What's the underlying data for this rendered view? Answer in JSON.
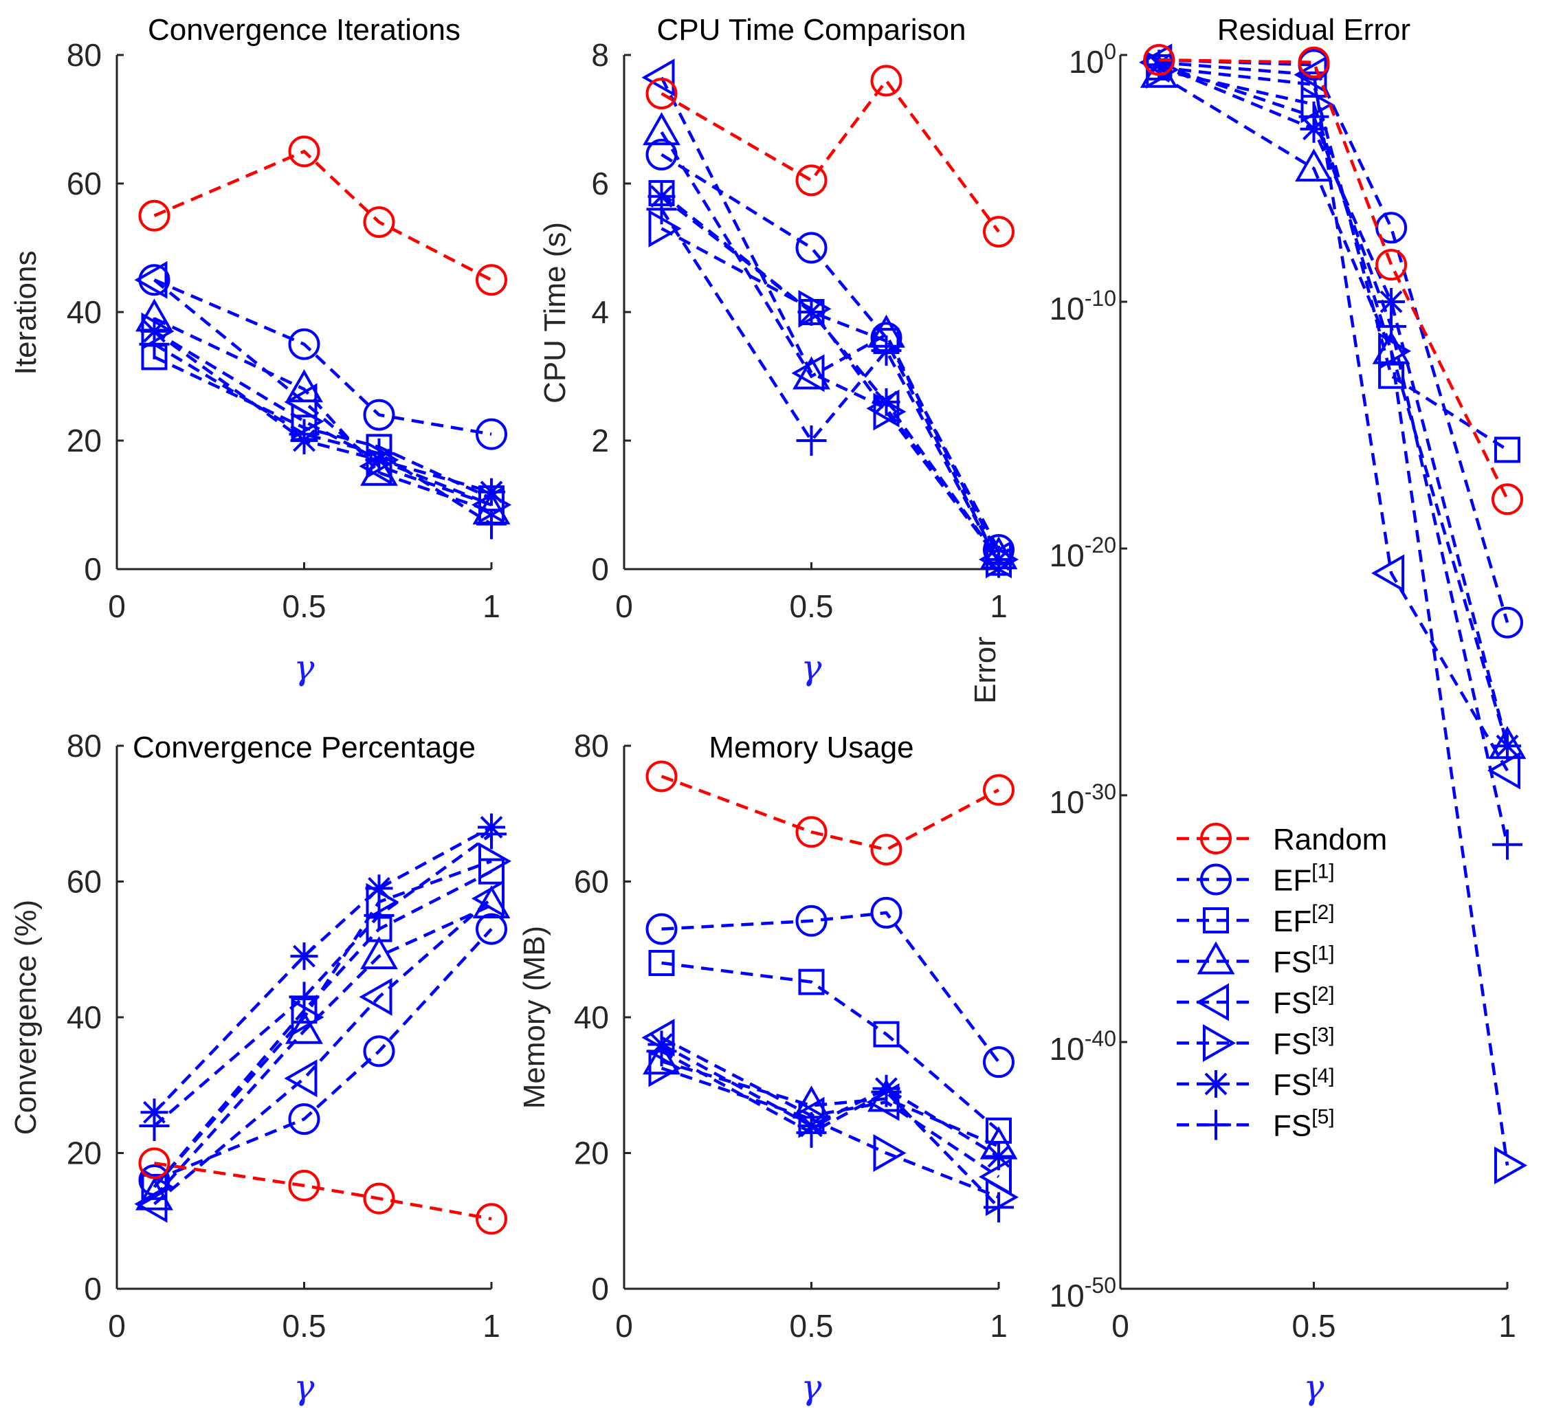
{
  "colors": {
    "random": "#ff0000",
    "method": "#0000ff",
    "axis": "#262626",
    "gamma": "#1a1aff"
  },
  "legend": [
    {
      "label": "Random",
      "base": "Random",
      "sup": "",
      "marker": "circle"
    },
    {
      "label": "EF[1]",
      "base": "EF",
      "sup": "[1]",
      "marker": "circle"
    },
    {
      "label": "EF[2]",
      "base": "EF",
      "sup": "[2]",
      "marker": "square"
    },
    {
      "label": "FS[1]",
      "base": "FS",
      "sup": "[1]",
      "marker": "triangle-up"
    },
    {
      "label": "FS[2]",
      "base": "FS",
      "sup": "[2]",
      "marker": "triangle-left"
    },
    {
      "label": "FS[3]",
      "base": "FS",
      "sup": "[3]",
      "marker": "triangle-right"
    },
    {
      "label": "FS[4]",
      "base": "FS",
      "sup": "[4]",
      "marker": "asterisk"
    },
    {
      "label": "FS[5]",
      "base": "FS",
      "sup": "[5]",
      "marker": "plus"
    }
  ],
  "chart_data": [
    {
      "id": "iterations",
      "type": "line",
      "title": "Convergence Iterations",
      "xlabel": "γ",
      "ylabel": "Iterations",
      "xlim": [
        0,
        1
      ],
      "ylim": [
        0,
        80
      ],
      "xticks": [
        0,
        0.5,
        1
      ],
      "xtick_labels": [
        "0",
        "0.5",
        "1"
      ],
      "yticks": [
        0,
        20,
        40,
        60,
        80
      ],
      "ytick_labels": [
        "0",
        "20",
        "40",
        "60",
        "80"
      ],
      "yscale": "linear",
      "grid": false,
      "x": [
        0.1,
        0.5,
        0.7,
        1.0
      ],
      "series": [
        {
          "name": "Random",
          "values": [
            55,
            65,
            54,
            45
          ]
        },
        {
          "name": "EF[1]",
          "values": [
            45,
            35,
            24,
            21
          ]
        },
        {
          "name": "EF[2]",
          "values": [
            33,
            22,
            19,
            11
          ]
        },
        {
          "name": "FS[1]",
          "values": [
            39,
            28,
            15,
            9
          ]
        },
        {
          "name": "FS[2]",
          "values": [
            45,
            26,
            16,
            10
          ]
        },
        {
          "name": "FS[3]",
          "values": [
            37,
            23,
            17,
            10
          ]
        },
        {
          "name": "FS[4]",
          "values": [
            37,
            20,
            17,
            12
          ]
        },
        {
          "name": "FS[5]",
          "values": [
            35,
            21,
            18,
            7
          ]
        }
      ]
    },
    {
      "id": "cpu_time",
      "type": "line",
      "title": "CPU Time Comparison",
      "xlabel": "γ",
      "ylabel": "CPU Time (s)",
      "xlim": [
        0,
        1
      ],
      "ylim": [
        0,
        8
      ],
      "xticks": [
        0,
        0.5,
        1
      ],
      "xtick_labels": [
        "0",
        "0.5",
        "1"
      ],
      "yticks": [
        0,
        2,
        4,
        6,
        8
      ],
      "ytick_labels": [
        "0",
        "2",
        "4",
        "6",
        "8"
      ],
      "yscale": "linear",
      "grid": false,
      "x": [
        0.1,
        0.5,
        0.7,
        1.0
      ],
      "series": [
        {
          "name": "Random",
          "values": [
            7.4,
            6.05,
            7.6,
            5.25
          ]
        },
        {
          "name": "EF[1]",
          "values": [
            6.45,
            5.0,
            3.6,
            0.3
          ]
        },
        {
          "name": "EF[2]",
          "values": [
            5.85,
            4.0,
            3.55,
            0.1
          ]
        },
        {
          "name": "FS[1]",
          "values": [
            6.8,
            3.0,
            3.65,
            0.2
          ]
        },
        {
          "name": "FS[2]",
          "values": [
            7.65,
            3.05,
            2.5,
            0.15
          ]
        },
        {
          "name": "FS[3]",
          "values": [
            5.3,
            4.05,
            2.45,
            0.15
          ]
        },
        {
          "name": "FS[4]",
          "values": [
            5.8,
            4.0,
            2.6,
            0.15
          ]
        },
        {
          "name": "FS[5]",
          "values": [
            5.6,
            2.0,
            3.4,
            0.1
          ]
        }
      ]
    },
    {
      "id": "residual_error",
      "type": "line",
      "title": "Residual Error",
      "xlabel": "γ",
      "ylabel": "Error",
      "xlim": [
        0,
        1
      ],
      "ylim_log10": [
        -50,
        0
      ],
      "xticks": [
        0,
        0.5,
        1
      ],
      "xtick_labels": [
        "0",
        "0.5",
        "1"
      ],
      "yticks_log10": [
        -50,
        -40,
        -30,
        -20,
        -10,
        0
      ],
      "ytick_base": "10",
      "ytick_exponents": [
        "-50",
        "-40",
        "-30",
        "-20",
        "-10",
        "0"
      ],
      "yscale": "log",
      "grid": false,
      "x": [
        0.1,
        0.5,
        0.7,
        1.0
      ],
      "series": [
        {
          "name": "Random",
          "log10_values": [
            -0.2,
            -0.3,
            -8.5,
            -18
          ]
        },
        {
          "name": "EF[1]",
          "log10_values": [
            -0.2,
            -0.4,
            -7.0,
            -23
          ]
        },
        {
          "name": "EF[2]",
          "log10_values": [
            -0.5,
            -1.2,
            -13,
            -16
          ]
        },
        {
          "name": "FS[1]",
          "log10_values": [
            -0.8,
            -4.6,
            -12.0,
            -28
          ]
        },
        {
          "name": "FS[2]",
          "log10_values": [
            -0.3,
            -0.8,
            -21,
            -29
          ]
        },
        {
          "name": "FS[3]",
          "log10_values": [
            -0.6,
            -2.0,
            -12.0,
            -45
          ]
        },
        {
          "name": "FS[4]",
          "log10_values": [
            -0.4,
            -3.0,
            -10.0,
            -28
          ]
        },
        {
          "name": "FS[5]",
          "log10_values": [
            -0.4,
            -2.5,
            -11.0,
            -32
          ]
        }
      ]
    },
    {
      "id": "convergence_pct",
      "type": "line",
      "title": "Convergence Percentage",
      "xlabel": "γ",
      "ylabel": "Convergence (%)",
      "xlim": [
        0,
        1
      ],
      "ylim": [
        0,
        80
      ],
      "xticks": [
        0,
        0.5,
        1
      ],
      "xtick_labels": [
        "0",
        "0.5",
        "1"
      ],
      "yticks": [
        0,
        20,
        40,
        60,
        80
      ],
      "ytick_labels": [
        "0",
        "20",
        "40",
        "60",
        "80"
      ],
      "yscale": "linear",
      "grid": false,
      "x": [
        0.1,
        0.5,
        0.7,
        1.0
      ],
      "series": [
        {
          "name": "Random",
          "values": [
            18.5,
            15.2,
            13.3,
            10.3
          ]
        },
        {
          "name": "EF[1]",
          "values": [
            16,
            25,
            35,
            53
          ]
        },
        {
          "name": "EF[2]",
          "values": [
            15,
            41,
            53,
            61.5
          ]
        },
        {
          "name": "FS[1]",
          "values": [
            13.5,
            38,
            49,
            56.5
          ]
        },
        {
          "name": "FS[2]",
          "values": [
            12.5,
            31,
            43,
            57.5
          ]
        },
        {
          "name": "FS[3]",
          "values": [
            15,
            40,
            57,
            63
          ]
        },
        {
          "name": "FS[4]",
          "values": [
            26,
            49,
            59,
            68
          ]
        },
        {
          "name": "FS[5]",
          "values": [
            24,
            43,
            55,
            67
          ]
        }
      ]
    },
    {
      "id": "memory",
      "type": "line",
      "title": "Memory Usage",
      "xlabel": "γ",
      "ylabel": "Memory (MB)",
      "xlim": [
        0,
        1
      ],
      "ylim": [
        0,
        80
      ],
      "xticks": [
        0,
        0.5,
        1
      ],
      "xtick_labels": [
        "0",
        "0.5",
        "1"
      ],
      "yticks": [
        0,
        20,
        40,
        60,
        80
      ],
      "ytick_labels": [
        "0",
        "20",
        "40",
        "60",
        "80"
      ],
      "yscale": "linear",
      "grid": false,
      "x": [
        0.1,
        0.5,
        0.7,
        1.0
      ],
      "series": [
        {
          "name": "Random",
          "values": [
            75.5,
            67.3,
            64.7,
            73.5
          ]
        },
        {
          "name": "EF[1]",
          "values": [
            53,
            54.2,
            55.4,
            33.4
          ]
        },
        {
          "name": "EF[2]",
          "values": [
            48,
            45.2,
            37.5,
            23.3
          ]
        },
        {
          "name": "FS[1]",
          "values": [
            33.5,
            27,
            28,
            21
          ]
        },
        {
          "name": "FS[2]",
          "values": [
            37,
            25.5,
            27.5,
            16.5
          ]
        },
        {
          "name": "FS[3]",
          "values": [
            32.5,
            25,
            20,
            13.5
          ]
        },
        {
          "name": "FS[4]",
          "values": [
            36,
            24,
            29.5,
            19.5
          ]
        },
        {
          "name": "FS[5]",
          "values": [
            35,
            23,
            29,
            12
          ]
        }
      ]
    }
  ]
}
